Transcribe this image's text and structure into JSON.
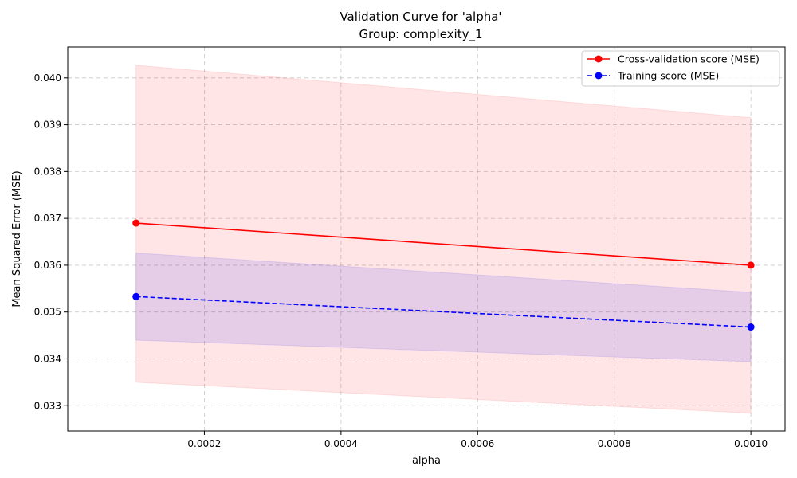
{
  "chart_data": {
    "type": "line",
    "title": "Validation Curve for 'alpha'",
    "subtitle": "Group: complexity_1",
    "xlabel": "alpha",
    "ylabel": "Mean Squared Error (MSE)",
    "xlim": [
      0.0,
      0.00105
    ],
    "ylim": [
      0.03246,
      0.04066
    ],
    "x_ticks": [
      "0.0002",
      "0.0004",
      "0.0006",
      "0.0008",
      "0.0010"
    ],
    "x_tick_values": [
      0.0002,
      0.0004,
      0.0006,
      0.0008,
      0.001
    ],
    "y_ticks": [
      "0.033",
      "0.034",
      "0.035",
      "0.036",
      "0.037",
      "0.038",
      "0.039",
      "0.040"
    ],
    "y_tick_values": [
      0.033,
      0.034,
      0.035,
      0.036,
      0.037,
      0.038,
      0.039,
      0.04
    ],
    "grid": true,
    "legend_position": "top-right",
    "series": [
      {
        "name": "Cross-validation score (MSE)",
        "color": "#ff0000",
        "line_style": "solid",
        "marker": "circle",
        "x": [
          0.0001,
          0.001
        ],
        "values": [
          0.0369,
          0.036
        ],
        "band_upper": [
          0.04027,
          0.03915
        ],
        "band_lower": [
          0.0335,
          0.03284
        ],
        "band_color": "#ff0000"
      },
      {
        "name": "Training score (MSE)",
        "color": "#0000ff",
        "line_style": "dashed",
        "marker": "circle",
        "x": [
          0.0001,
          0.001
        ],
        "values": [
          0.03533,
          0.03468
        ],
        "band_upper": [
          0.03626,
          0.03542
        ],
        "band_lower": [
          0.0344,
          0.03394
        ],
        "band_color": "#0000ff"
      }
    ]
  }
}
